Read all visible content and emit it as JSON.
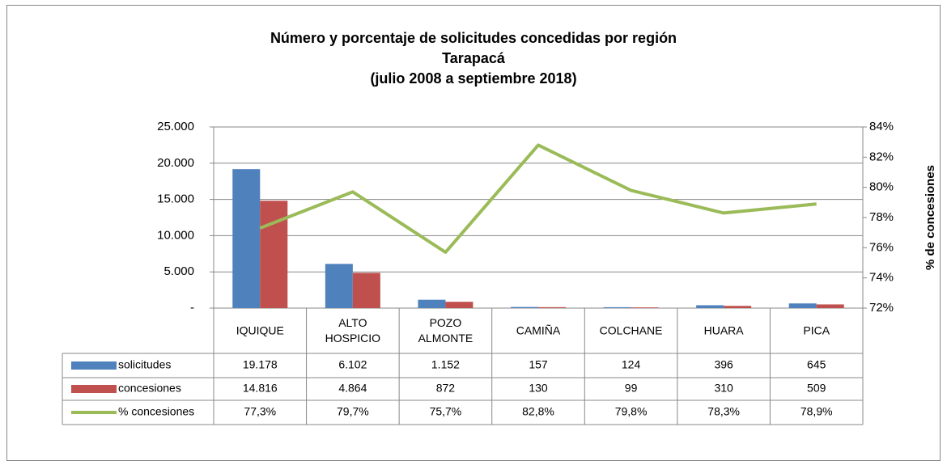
{
  "chart_data": {
    "type": "bar",
    "title": [
      "Número y porcentaje de solicitudes concedidas por región",
      "Tarapacá",
      "(julio 2008 a septiembre 2018)"
    ],
    "y2_label": "% de concesiones",
    "categories": [
      "IQUIQUE",
      "ALTO HOSPICIO",
      "POZO ALMONTE",
      "CAMIÑA",
      "COLCHANE",
      "HUARA",
      "PICA"
    ],
    "series": [
      {
        "name": "solicitudes",
        "color": "#4f81bd",
        "type": "bar",
        "values": [
          19178,
          6102,
          1152,
          157,
          124,
          396,
          645
        ],
        "value_labels": [
          "19.178",
          "6.102",
          "1.152",
          "157",
          "124",
          "396",
          "645"
        ]
      },
      {
        "name": "concesiones",
        "color": "#c0504d",
        "type": "bar",
        "values": [
          14816,
          4864,
          872,
          130,
          99,
          310,
          509
        ],
        "value_labels": [
          "14.816",
          "4.864",
          "872",
          "130",
          "99",
          "310",
          "509"
        ]
      },
      {
        "name": "% concesiones",
        "color": "#9bbb59",
        "type": "line",
        "axis": "y2",
        "values": [
          77.3,
          79.7,
          75.7,
          82.8,
          79.8,
          78.3,
          78.9
        ],
        "value_labels": [
          "77,3%",
          "79,7%",
          "75,7%",
          "82,8%",
          "79,8%",
          "78,3%",
          "78,9%"
        ]
      }
    ],
    "ylim": [
      0,
      25000
    ],
    "yticks": [
      {
        "value": 0,
        "label": "-"
      },
      {
        "value": 5000,
        "label": "5.000"
      },
      {
        "value": 10000,
        "label": "10.000"
      },
      {
        "value": 15000,
        "label": "15.000"
      },
      {
        "value": 20000,
        "label": "20.000"
      },
      {
        "value": 25000,
        "label": "25.000"
      }
    ],
    "y2lim": [
      72,
      84
    ],
    "y2ticks": [
      {
        "value": 72,
        "label": "72%"
      },
      {
        "value": 74,
        "label": "74%"
      },
      {
        "value": 76,
        "label": "76%"
      },
      {
        "value": 78,
        "label": "78%"
      },
      {
        "value": 80,
        "label": "80%"
      },
      {
        "value": 82,
        "label": "82%"
      },
      {
        "value": 84,
        "label": "84%"
      }
    ],
    "grid": true
  }
}
